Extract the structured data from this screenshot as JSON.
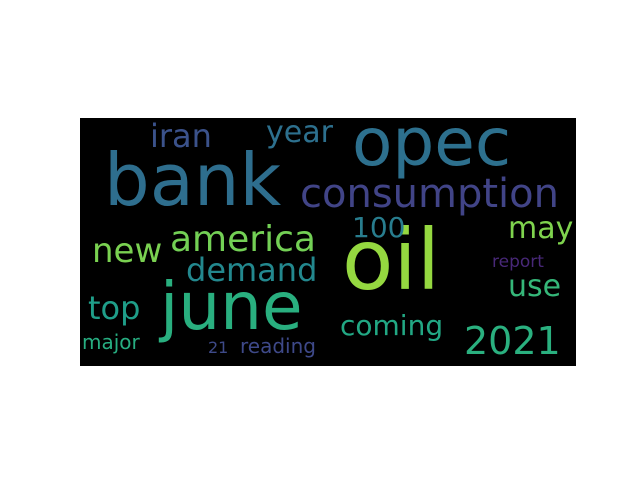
{
  "wordcloud": {
    "background": "#000000",
    "words": [
      {
        "text": "oil",
        "color": "#95d840"
      },
      {
        "text": "bank",
        "color": "#2e6e8e"
      },
      {
        "text": "opec",
        "color": "#2d708e"
      },
      {
        "text": "june",
        "color": "#29af7f"
      },
      {
        "text": "consumption",
        "color": "#414487"
      },
      {
        "text": "america",
        "color": "#73d055"
      },
      {
        "text": "demand",
        "color": "#23888e"
      },
      {
        "text": "new",
        "color": "#7ad151"
      },
      {
        "text": "coming",
        "color": "#22a884"
      },
      {
        "text": "2021",
        "color": "#2ab07f"
      },
      {
        "text": "iran",
        "color": "#3b528b"
      },
      {
        "text": "year",
        "color": "#2d708e"
      },
      {
        "text": "may",
        "color": "#7fd34e"
      },
      {
        "text": "100",
        "color": "#287d8e"
      },
      {
        "text": "top",
        "color": "#1f9e89"
      },
      {
        "text": "use",
        "color": "#35b779"
      },
      {
        "text": "major",
        "color": "#27ad81"
      },
      {
        "text": "report",
        "color": "#482878"
      },
      {
        "text": "21",
        "color": "#3e4a89"
      },
      {
        "text": "reading",
        "color": "#3e4989"
      }
    ]
  }
}
